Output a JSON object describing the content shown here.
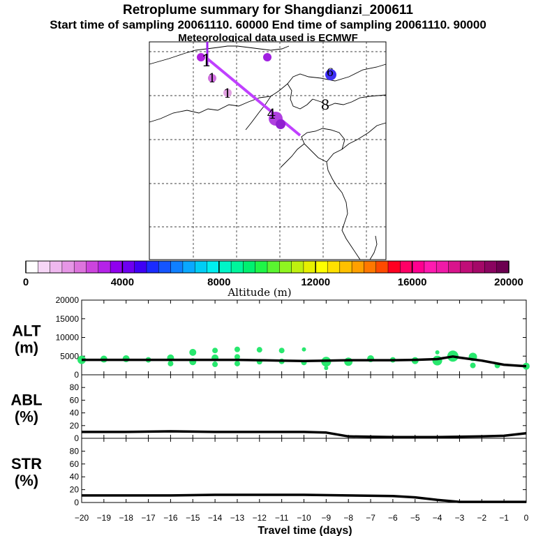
{
  "header": {
    "title": "Retroplume summary for Shangdianzi_200611",
    "times": "Start time of sampling 20061110. 60000     End time of sampling 20061110. 90000",
    "met": "Meteorological data used is ECMWF"
  },
  "colorbar": {
    "label": "Altitude (m)",
    "min": 0,
    "max": 20000,
    "ticks": [
      0,
      4000,
      8000,
      12000,
      16000,
      20000
    ],
    "colors": [
      "#ffffff",
      "#f6d6f6",
      "#efb8ef",
      "#e696e6",
      "#dd74dd",
      "#cc44dd",
      "#b522e8",
      "#9000ee",
      "#6e00f0",
      "#3f00f5",
      "#1a2bff",
      "#1555ff",
      "#1080ff",
      "#0aa8ff",
      "#00cdf5",
      "#00eef0",
      "#00f5c8",
      "#00f59c",
      "#00f070",
      "#1ff547",
      "#5af530",
      "#8ff520",
      "#bff010",
      "#e6f000",
      "#ffff00",
      "#ffe000",
      "#ffc000",
      "#ffa000",
      "#ff7800",
      "#ff4a00",
      "#ff0020",
      "#ff0066",
      "#ff0090",
      "#ff1ab0",
      "#f01aa8",
      "#d8148c",
      "#c00e78",
      "#a40868",
      "#8a0460",
      "#6c0050"
    ]
  },
  "map": {
    "markers": [
      {
        "text": "1",
        "cls": "serif"
      },
      {
        "text": "1",
        "cls": "serif"
      },
      {
        "text": "1",
        "cls": "serif"
      },
      {
        "text": "4",
        "cls": "serif"
      },
      {
        "text": "8",
        "cls": "serif"
      },
      {
        "text": "6",
        "cls": "serif"
      }
    ]
  },
  "chart_data": {
    "type": "line",
    "xlabel": "Travel time (days)",
    "xlim": [
      -20,
      0
    ],
    "xticks": [
      -20,
      -19,
      -18,
      -17,
      -16,
      -15,
      -14,
      -13,
      -12,
      -11,
      -10,
      -9,
      -8,
      -7,
      -6,
      -5,
      -4,
      -3,
      -2,
      -1,
      0
    ],
    "panels": [
      {
        "name": "ALT",
        "ylabel_line1": "ALT",
        "ylabel_line2": "(m)",
        "ylim": [
          0,
          20000
        ],
        "yticks": [
          0,
          5000,
          10000,
          15000,
          20000
        ],
        "x": [
          -20,
          -19,
          -18,
          -17,
          -16,
          -15,
          -14,
          -13,
          -12,
          -11,
          -10,
          -9,
          -8,
          -7,
          -6,
          -5,
          -4,
          -3.3,
          -3,
          -2,
          -1,
          0
        ],
        "values": [
          4000,
          4000,
          4000,
          4000,
          4000,
          4000,
          4000,
          4000,
          3900,
          3800,
          3700,
          3800,
          3900,
          3900,
          3900,
          4000,
          4200,
          4900,
          4600,
          3800,
          2700,
          2300
        ],
        "scatter": [
          {
            "x": -20,
            "y": 4000,
            "r": 6
          },
          {
            "x": -19,
            "y": 4200,
            "r": 5
          },
          {
            "x": -18,
            "y": 4300,
            "r": 5
          },
          {
            "x": -17,
            "y": 4000,
            "r": 4
          },
          {
            "x": -16,
            "y": 4500,
            "r": 5
          },
          {
            "x": -16,
            "y": 3000,
            "r": 4
          },
          {
            "x": -15,
            "y": 6000,
            "r": 5
          },
          {
            "x": -15,
            "y": 3500,
            "r": 5
          },
          {
            "x": -14,
            "y": 6500,
            "r": 4
          },
          {
            "x": -14,
            "y": 4500,
            "r": 5
          },
          {
            "x": -14,
            "y": 2800,
            "r": 4
          },
          {
            "x": -13,
            "y": 6800,
            "r": 4
          },
          {
            "x": -13,
            "y": 4800,
            "r": 4
          },
          {
            "x": -13,
            "y": 3000,
            "r": 4
          },
          {
            "x": -12,
            "y": 6700,
            "r": 4
          },
          {
            "x": -12,
            "y": 3500,
            "r": 4
          },
          {
            "x": -11,
            "y": 6500,
            "r": 4
          },
          {
            "x": -11,
            "y": 3600,
            "r": 4
          },
          {
            "x": -10,
            "y": 6800,
            "r": 3
          },
          {
            "x": -10,
            "y": 3300,
            "r": 4
          },
          {
            "x": -9,
            "y": 3500,
            "r": 7
          },
          {
            "x": -9,
            "y": 1800,
            "r": 3
          },
          {
            "x": -8,
            "y": 3500,
            "r": 6
          },
          {
            "x": -7,
            "y": 4300,
            "r": 5
          },
          {
            "x": -6,
            "y": 4000,
            "r": 4
          },
          {
            "x": -5,
            "y": 3800,
            "r": 5
          },
          {
            "x": -4,
            "y": 3800,
            "r": 7
          },
          {
            "x": -4,
            "y": 6000,
            "r": 3
          },
          {
            "x": -3.3,
            "y": 5000,
            "r": 8
          },
          {
            "x": -2.4,
            "y": 4800,
            "r": 6
          },
          {
            "x": -2.4,
            "y": 2500,
            "r": 4
          },
          {
            "x": -1.3,
            "y": 2500,
            "r": 4
          },
          {
            "x": 0,
            "y": 2300,
            "r": 5
          }
        ]
      },
      {
        "name": "ABL",
        "ylabel_line1": "ABL",
        "ylabel_line2": "(%)",
        "ylim": [
          0,
          100
        ],
        "yticks": [
          0,
          20,
          40,
          60,
          80
        ],
        "x": [
          -20,
          -18,
          -16,
          -14,
          -12,
          -10,
          -9,
          -8,
          -6,
          -4,
          -2,
          -1,
          0
        ],
        "values": [
          10,
          10,
          11,
          10,
          10,
          10,
          9,
          3,
          2,
          2,
          3,
          4,
          8
        ]
      },
      {
        "name": "STR",
        "ylabel_line1": "STR",
        "ylabel_line2": "(%)",
        "ylim": [
          0,
          100
        ],
        "yticks": [
          0,
          20,
          40,
          60,
          80
        ],
        "x": [
          -20,
          -18,
          -16,
          -14,
          -12,
          -10,
          -8,
          -6,
          -5,
          -4,
          -3,
          -2,
          -1,
          0
        ],
        "values": [
          11,
          11,
          11,
          12,
          12,
          12,
          11,
          10,
          8,
          4,
          1,
          1,
          1,
          1
        ]
      }
    ]
  }
}
